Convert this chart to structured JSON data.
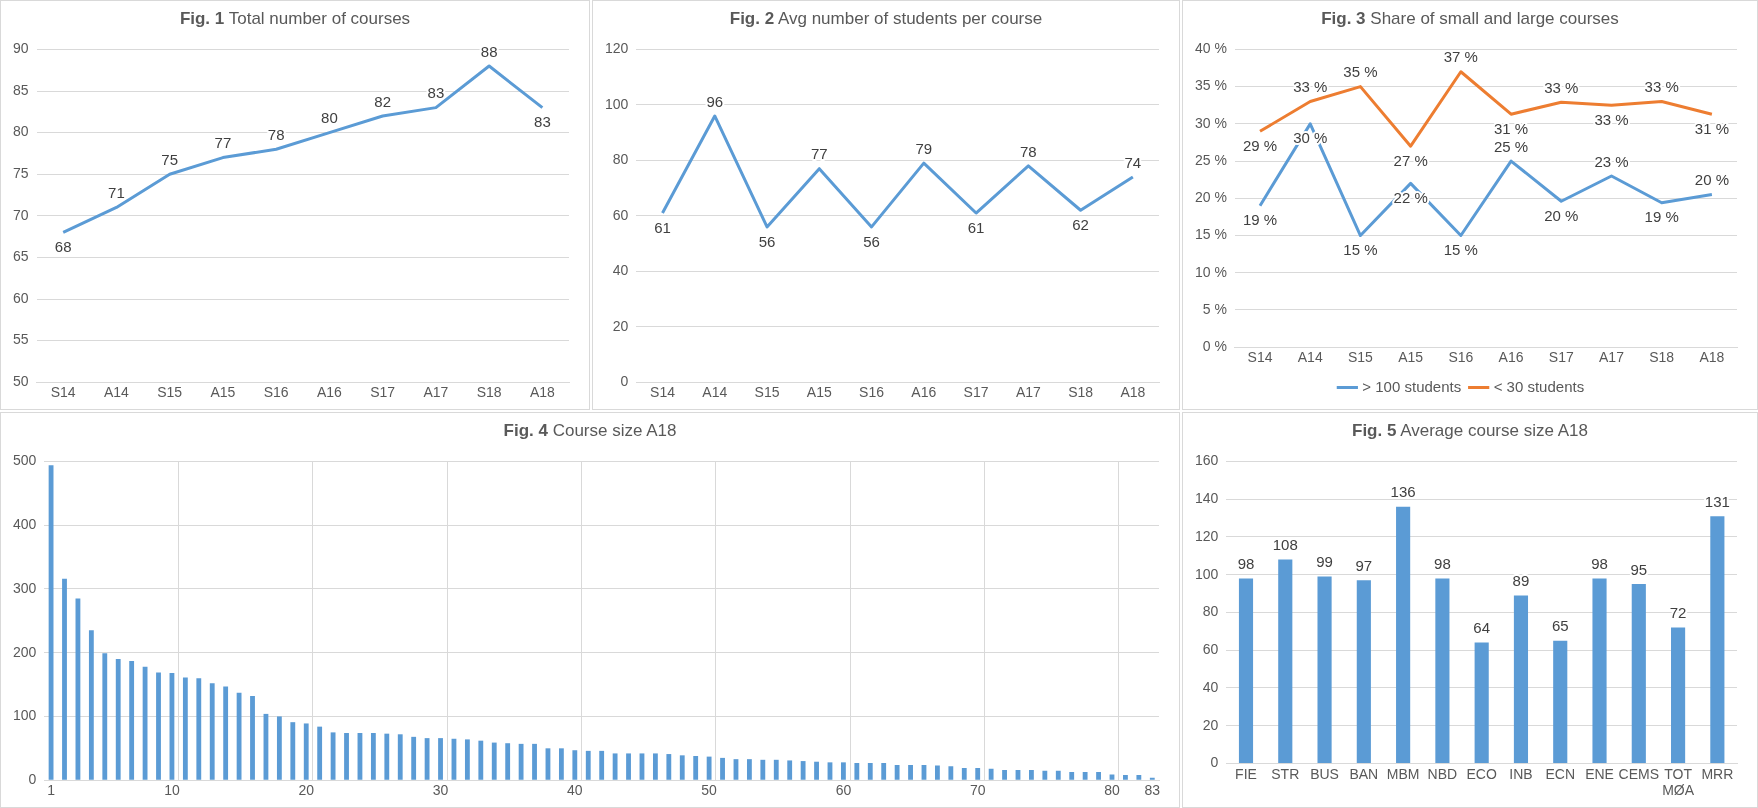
{
  "chart_data": [
    {
      "type": "line",
      "title": "Fig. 1 Total number of courses",
      "categories": [
        "S14",
        "A14",
        "S15",
        "A15",
        "S16",
        "A16",
        "S17",
        "A17",
        "S18",
        "A18"
      ],
      "series": [
        {
          "color": "#5b9bd5",
          "values": [
            68,
            71,
            75,
            77,
            78,
            80,
            82,
            83,
            88,
            83
          ]
        }
      ],
      "ylim": [
        50,
        90
      ],
      "yticks": [
        50,
        55,
        60,
        65,
        70,
        75,
        80,
        85,
        90
      ],
      "grid": "y",
      "data_labels": true,
      "marker": "none"
    },
    {
      "type": "line",
      "title": "Fig. 2 Avg number of students per course",
      "categories": [
        "S14",
        "A14",
        "S15",
        "A15",
        "S16",
        "A16",
        "S17",
        "A17",
        "S18",
        "A18"
      ],
      "series": [
        {
          "color": "#5b9bd5",
          "values": [
            61,
            96,
            56,
            77,
            56,
            79,
            61,
            78,
            62,
            74
          ]
        }
      ],
      "ylim": [
        0,
        120
      ],
      "yticks": [
        0,
        20,
        40,
        60,
        80,
        100,
        120
      ],
      "grid": "y",
      "data_labels": true,
      "marker": "none"
    },
    {
      "type": "line",
      "title": "Fig. 3 Share of small and large courses",
      "categories": [
        "S14",
        "A14",
        "S15",
        "A15",
        "S16",
        "A16",
        "S17",
        "A17",
        "S18",
        "A18"
      ],
      "series": [
        {
          "name": "> 100 students",
          "color": "#5b9bd5",
          "values": [
            19,
            30,
            15,
            22,
            15,
            25,
            19.6,
            23,
            19.4,
            20.5
          ],
          "value_labels": [
            "19 %",
            "30 %",
            "15 %",
            "22 %",
            "15 %",
            "25 %",
            "20 %",
            "23 %",
            "19 %",
            "20 %"
          ]
        },
        {
          "name": "< 30 students",
          "color": "#ed7d31",
          "values": [
            29,
            33,
            35,
            27,
            37,
            31.3,
            32.9,
            32.5,
            33,
            31.3
          ],
          "value_labels": [
            "29 %",
            "33 %",
            "35 %",
            "27 %",
            "37 %",
            "31 %",
            "33 %",
            "33 %",
            "33 %",
            "31 %"
          ]
        }
      ],
      "ylim": [
        0,
        40
      ],
      "yticks": [
        {
          "value": 0,
          "label": "0 %"
        },
        {
          "value": 5,
          "label": "5 %"
        },
        {
          "value": 10,
          "label": "10 %"
        },
        {
          "value": 15,
          "label": "15 %"
        },
        {
          "value": 20,
          "label": "20 %"
        },
        {
          "value": 25,
          "label": "25 %"
        },
        {
          "value": 30,
          "label": "30 %"
        },
        {
          "value": 35,
          "label": "35 %"
        },
        {
          "value": 40,
          "label": "40 %"
        }
      ],
      "grid": "y",
      "legend": "bottom",
      "marker": "none"
    },
    {
      "type": "bar",
      "title": "Fig. 4 Course size A18",
      "categories": [
        "1",
        null,
        null,
        null,
        null,
        null,
        null,
        null,
        null,
        "10",
        null,
        null,
        null,
        null,
        null,
        null,
        null,
        null,
        null,
        "20",
        null,
        null,
        null,
        null,
        null,
        null,
        null,
        null,
        null,
        "30",
        null,
        null,
        null,
        null,
        null,
        null,
        null,
        null,
        null,
        "40",
        null,
        null,
        null,
        null,
        null,
        null,
        null,
        null,
        null,
        "50",
        null,
        null,
        null,
        null,
        null,
        null,
        null,
        null,
        null,
        "60",
        null,
        null,
        null,
        null,
        null,
        null,
        null,
        null,
        null,
        "70",
        null,
        null,
        null,
        null,
        null,
        null,
        null,
        null,
        null,
        "80",
        null,
        null,
        "83"
      ],
      "series": [
        {
          "color": "#5b9bd5",
          "values": [
            494,
            316,
            285,
            235,
            199,
            190,
            187,
            178,
            169,
            168,
            161,
            160,
            152,
            147,
            137,
            132,
            104,
            100,
            91,
            89,
            84,
            75,
            74,
            74,
            74,
            73,
            72,
            68,
            66,
            66,
            65,
            64,
            62,
            59,
            58,
            57,
            57,
            50,
            50,
            47,
            46,
            46,
            42,
            42,
            42,
            42,
            41,
            39,
            38,
            37,
            35,
            33,
            33,
            32,
            32,
            31,
            30,
            29,
            28,
            28,
            27,
            27,
            27,
            24,
            24,
            24,
            23,
            22,
            19,
            19,
            18,
            16,
            16,
            16,
            15,
            15,
            13,
            13,
            13,
            9,
            8,
            8,
            4
          ]
        }
      ],
      "ylim": [
        0,
        500
      ],
      "yticks": [
        0,
        100,
        200,
        300,
        400,
        500
      ],
      "grid": true
    },
    {
      "type": "bar",
      "title": "Fig. 5 Average course size A18",
      "categories": [
        "FIE",
        "STR",
        "BUS",
        "BAN",
        "MBM",
        "NBD",
        "ECO",
        "INB",
        "ECN",
        "ENE",
        "CEMS",
        "TOT MØA",
        "MRR"
      ],
      "series": [
        {
          "color": "#5b9bd5",
          "values": [
            98,
            108,
            99,
            97,
            136,
            98,
            64,
            89,
            65,
            98,
            95,
            72,
            131
          ]
        }
      ],
      "ylim": [
        0,
        160
      ],
      "yticks": [
        0,
        20,
        40,
        60,
        80,
        100,
        120,
        140,
        160
      ],
      "grid": "y",
      "data_labels": true
    }
  ]
}
